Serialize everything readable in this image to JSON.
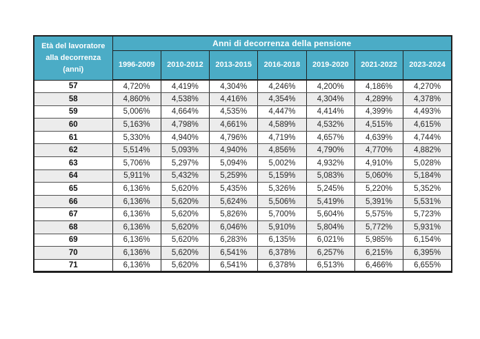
{
  "chart_data": {
    "type": "table",
    "title": "Anni di decorrenza della pensione",
    "corner_header": "Età del lavoratore alla decorrenza (anni)",
    "columns": [
      "1996-2009",
      "2010-2012",
      "2013-2015",
      "2016-2018",
      "2019-2020",
      "2021-2022",
      "2023-2024"
    ],
    "rows": [
      {
        "age": "57",
        "values": [
          "4,720%",
          "4,419%",
          "4,304%",
          "4,246%",
          "4,200%",
          "4,186%",
          "4,270%"
        ]
      },
      {
        "age": "58",
        "values": [
          "4,860%",
          "4,538%",
          "4,416%",
          "4,354%",
          "4,304%",
          "4,289%",
          "4,378%"
        ]
      },
      {
        "age": "59",
        "values": [
          "5,006%",
          "4,664%",
          "4,535%",
          "4,447%",
          "4,414%",
          "4,399%",
          "4,493%"
        ]
      },
      {
        "age": "60",
        "values": [
          "5,163%",
          "4,798%",
          "4,661%",
          "4,589%",
          "4,532%",
          "4,515%",
          "4,615%"
        ]
      },
      {
        "age": "61",
        "values": [
          "5,330%",
          "4,940%",
          "4,796%",
          "4,719%",
          "4,657%",
          "4,639%",
          "4,744%"
        ]
      },
      {
        "age": "62",
        "values": [
          "5,514%",
          "5,093%",
          "4,940%",
          "4,856%",
          "4,790%",
          "4,770%",
          "4,882%"
        ]
      },
      {
        "age": "63",
        "values": [
          "5,706%",
          "5,297%",
          "5,094%",
          "5,002%",
          "4,932%",
          "4,910%",
          "5,028%"
        ]
      },
      {
        "age": "64",
        "values": [
          "5,911%",
          "5,432%",
          "5,259%",
          "5,159%",
          "5,083%",
          "5,060%",
          "5,184%"
        ]
      },
      {
        "age": "65",
        "values": [
          "6,136%",
          "5,620%",
          "5,435%",
          "5,326%",
          "5,245%",
          "5,220%",
          "5,352%"
        ]
      },
      {
        "age": "66",
        "values": [
          "6,136%",
          "5,620%",
          "5,624%",
          "5,506%",
          "5,419%",
          "5,391%",
          "5,531%"
        ]
      },
      {
        "age": "67",
        "values": [
          "6,136%",
          "5,620%",
          "5,826%",
          "5,700%",
          "5,604%",
          "5,575%",
          "5,723%"
        ]
      },
      {
        "age": "68",
        "values": [
          "6,136%",
          "5,620%",
          "6,046%",
          "5,910%",
          "5,804%",
          "5,772%",
          "5,931%"
        ]
      },
      {
        "age": "69",
        "values": [
          "6,136%",
          "5,620%",
          "6,283%",
          "6,135%",
          "6,021%",
          "5,985%",
          "6,154%"
        ]
      },
      {
        "age": "70",
        "values": [
          "6,136%",
          "5,620%",
          "6,541%",
          "6,378%",
          "6,257%",
          "6,215%",
          "6,395%"
        ]
      },
      {
        "age": "71",
        "values": [
          "6,136%",
          "5,620%",
          "6,541%",
          "6,378%",
          "6,513%",
          "6,466%",
          "6,655%"
        ]
      }
    ],
    "layout": {
      "alternating_rows": true,
      "header_merged_corner": true
    }
  },
  "colors": {
    "page_bg": "#FFFFFF",
    "header_bg": "#4BACC6",
    "header_text": "#FFFFFF",
    "row_bg": "#FFFFFF",
    "alt_row_bg": "#ECECEC",
    "border": "#1F1F1F",
    "data_text": "#262626"
  }
}
